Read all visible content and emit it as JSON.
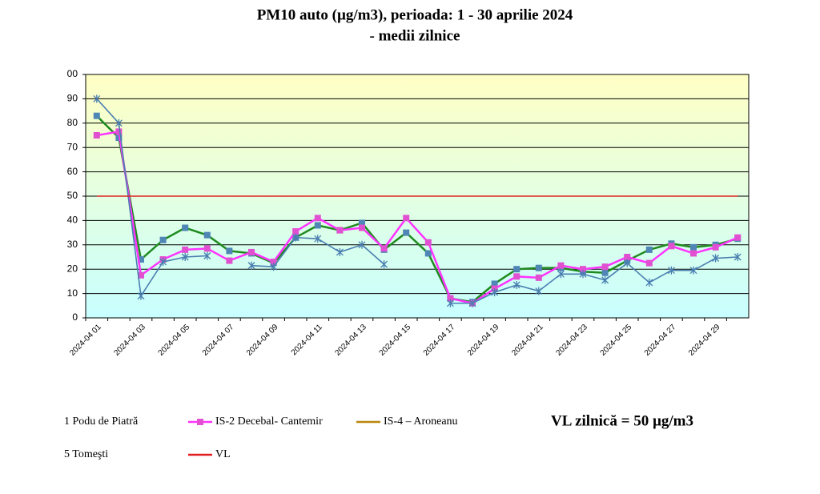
{
  "chart_data": {
    "type": "line",
    "title": "PM10 auto (µg/m3), perioada:  1 - 30 aprilie  2024",
    "subtitle": "- medii zilnice",
    "annotation": "VL zilnică  = 50 µg/m3",
    "categories": [
      "2024-04 01",
      null,
      "2024-04 03",
      null,
      "2024-04 05",
      null,
      "2024-04 07",
      null,
      "2024-04 09",
      null,
      "2024-04 11",
      null,
      "2024-04 13",
      null,
      "2024-04 15",
      null,
      "2024-04 17",
      null,
      "2024-04 19",
      null,
      "2024-04 21",
      null,
      "2024-04 23",
      null,
      "2024-04 25",
      null,
      "2024-04 27",
      null,
      "2024-04 29",
      null
    ],
    "series": [
      {
        "name": "1 Podu de Piatră",
        "color": "#1f8a1f",
        "marker": "square",
        "marker_color": "#4f86b5",
        "values": [
          83,
          74,
          24,
          32,
          37,
          34,
          27.5,
          26.5,
          22.5,
          33,
          38,
          36,
          39,
          28,
          35,
          26.5,
          8,
          6.5,
          14,
          20,
          20.5,
          20.5,
          19,
          18.5,
          23.5,
          28,
          30.5,
          29,
          30,
          32.5
        ]
      },
      {
        "name": "IS-2 Decebal- Cantemir",
        "color": "#ff33ff",
        "marker": "square",
        "marker_color": "#e050d0",
        "values": [
          75,
          76.5,
          17.5,
          24,
          28,
          28.5,
          23.5,
          27,
          23,
          35.5,
          41,
          36,
          37,
          28.5,
          41,
          31,
          8,
          6,
          12,
          17,
          16.5,
          21.5,
          20,
          21,
          25,
          22.5,
          29.5,
          26.5,
          29,
          33
        ]
      },
      {
        "name": "IS-4 – Aroneanu",
        "color": "#b8860b",
        "marker": "none",
        "values": [
          null,
          null,
          null,
          null,
          null,
          null,
          null,
          null,
          null,
          null,
          null,
          null,
          null,
          null,
          null,
          null,
          null,
          null,
          null,
          null,
          null,
          null,
          null,
          null,
          null,
          null,
          null,
          null,
          null,
          null
        ]
      },
      {
        "name": "5 Tomeşti",
        "color": "#4a7eb0",
        "marker": "star",
        "marker_color": "#4a7eb0",
        "values": [
          90,
          80,
          9,
          23,
          25,
          25.5,
          null,
          21.5,
          21,
          33,
          32.5,
          27,
          30,
          22,
          null,
          null,
          6,
          6,
          10.5,
          13.5,
          11,
          18,
          18,
          15.5,
          22.5,
          14.5,
          19.5,
          19.5,
          24.5,
          25
        ]
      },
      {
        "name": "VL",
        "color": "#e02020",
        "marker": "none",
        "values": [
          50,
          50,
          50,
          50,
          50,
          50,
          50,
          50,
          50,
          50,
          50,
          50,
          50,
          50,
          50,
          50,
          50,
          50,
          50,
          50,
          50,
          50,
          50,
          50,
          50,
          50,
          50,
          50,
          50,
          50
        ]
      }
    ],
    "ylim": [
      0,
      100
    ],
    "yticks": [
      0,
      10,
      20,
      30,
      40,
      50,
      60,
      70,
      80,
      90,
      {
        "value": 100,
        "label": "00"
      }
    ],
    "grid": true
  }
}
